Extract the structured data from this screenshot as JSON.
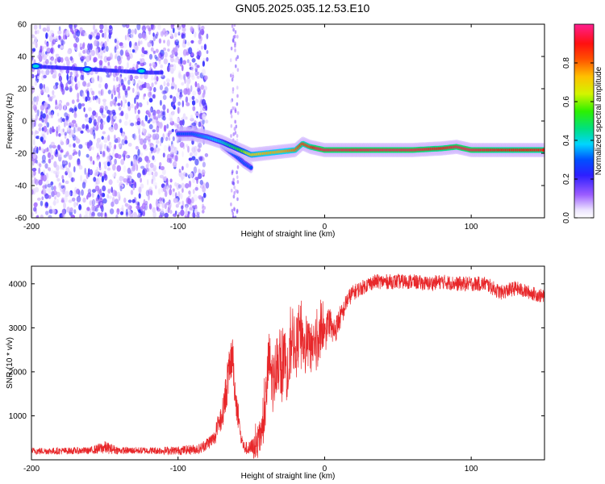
{
  "title": "GN05.2025.035.12.53.E10",
  "colors": {
    "spectrum_scatter": "#7b2be0",
    "snr_line": "#e8272a",
    "axis": "#000000",
    "background": "#ffffff"
  },
  "chart_data": [
    {
      "type": "heatmap",
      "xlabel": "Height of straight line (km)",
      "ylabel": "Frequency (Hz)",
      "xlim": [
        -200,
        150
      ],
      "ylim": [
        -60,
        60
      ],
      "xticks": [
        -200,
        -100,
        0,
        100
      ],
      "yticks": [
        -60,
        -40,
        -20,
        0,
        20,
        40,
        60
      ],
      "grid": false,
      "colorbar": {
        "label": "Normalized spectral amplitude",
        "ticks": [
          0.0,
          0.2,
          0.4,
          0.6,
          0.8
        ],
        "tick_labels": [
          "0.0",
          "0.2",
          "0.4",
          "0.6",
          "0.8"
        ],
        "range": [
          0,
          1
        ]
      },
      "noise_region_x": [
        -200,
        -85
      ],
      "narrowband_trace": {
        "x": [
          -200,
          -180,
          -160,
          -140,
          -120,
          -110
        ],
        "frequency": [
          34,
          33,
          32,
          31,
          30,
          30
        ],
        "amplitude": [
          0.3,
          0.25,
          0.3,
          0.2,
          0.28,
          0.2
        ]
      },
      "main_trace": {
        "x": [
          -100,
          -90,
          -80,
          -70,
          -60,
          -50,
          -40,
          -30,
          -20,
          -15,
          -10,
          -5,
          0,
          20,
          40,
          60,
          80,
          90,
          100,
          120,
          150
        ],
        "frequency": [
          -8,
          -8,
          -10,
          -13,
          -17,
          -21,
          -20,
          -19,
          -18,
          -14,
          -16,
          -17,
          -18,
          -18,
          -18,
          -18,
          -17,
          -16,
          -18,
          -18,
          -18
        ],
        "amplitude": [
          0.3,
          0.3,
          0.35,
          0.4,
          0.5,
          0.7,
          0.75,
          0.75,
          0.8,
          0.85,
          0.85,
          0.95,
          0.95,
          0.95,
          0.95,
          0.95,
          0.9,
          0.95,
          0.95,
          0.9,
          0.9
        ]
      },
      "branch_trace": {
        "x": [
          -70,
          -60,
          -55,
          -50
        ],
        "frequency": [
          -15,
          -22,
          -26,
          -29
        ],
        "amplitude": [
          0.35,
          0.3,
          0.3,
          0.3
        ]
      }
    },
    {
      "type": "line",
      "xlabel": "Height of straight line (km)",
      "ylabel": "SNR (10 * v/v)",
      "xlim": [
        -200,
        150
      ],
      "ylim": [
        0,
        4400
      ],
      "xticks": [
        -200,
        -100,
        0,
        100
      ],
      "yticks": [
        1000,
        2000,
        3000,
        4000
      ],
      "grid": false,
      "series": [
        {
          "x": [
            -200,
            -180,
            -160,
            -150,
            -140,
            -120,
            -100,
            -85,
            -75,
            -70,
            -66,
            -63,
            -61,
            -59,
            -57,
            -55,
            -52,
            -50,
            -48,
            -45,
            -42,
            -40,
            -38,
            -35,
            -32,
            -30,
            -27,
            -25,
            -22,
            -20,
            -17,
            -15,
            -12,
            -10,
            -7,
            -5,
            -2,
            0,
            3,
            5,
            8,
            10,
            12,
            15,
            18,
            20,
            22,
            25,
            30,
            35,
            40,
            50,
            60,
            70,
            80,
            90,
            100,
            110,
            120,
            130,
            140,
            150
          ],
          "y": [
            200,
            200,
            210,
            280,
            210,
            210,
            210,
            250,
            500,
            1000,
            1800,
            2400,
            1500,
            1000,
            500,
            280,
            250,
            260,
            300,
            400,
            800,
            1400,
            2300,
            1700,
            2400,
            1900,
            2300,
            1800,
            2900,
            2400,
            3000,
            2300,
            2700,
            2500,
            2700,
            2500,
            3000,
            2800,
            3000,
            2900,
            3000,
            3200,
            3300,
            3600,
            3750,
            3800,
            3850,
            3900,
            4000,
            4050,
            4050,
            4050,
            4050,
            4000,
            4050,
            4000,
            4000,
            4000,
            3800,
            3900,
            3800,
            3700
          ],
          "noise": [
            80,
            80,
            80,
            150,
            80,
            80,
            100,
            120,
            180,
            300,
            500,
            500,
            400,
            300,
            200,
            150,
            150,
            200,
            300,
            400,
            500,
            600,
            700,
            700,
            700,
            700,
            700,
            700,
            700,
            700,
            700,
            700,
            600,
            600,
            600,
            600,
            500,
            400,
            350,
            350,
            300,
            300,
            250,
            200,
            200,
            180,
            180,
            170,
            170,
            170,
            170,
            170,
            170,
            170,
            170,
            170,
            170,
            170,
            170,
            170,
            160,
            160
          ]
        }
      ]
    }
  ]
}
